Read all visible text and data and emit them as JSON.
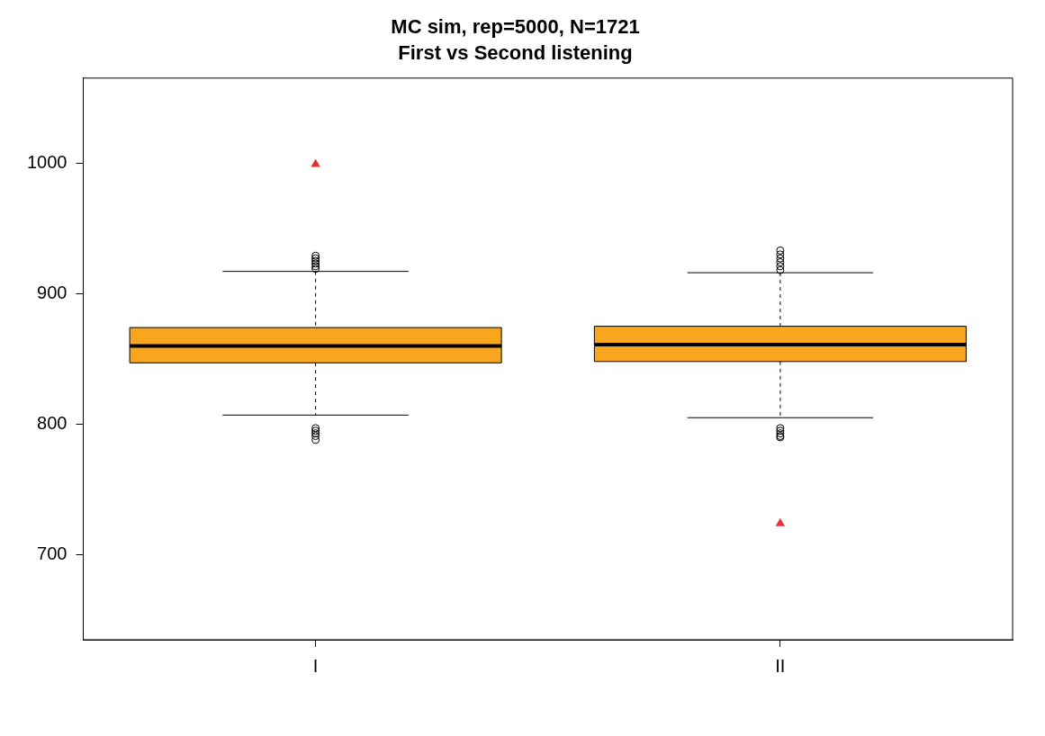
{
  "chart_data": {
    "type": "box",
    "title": "MC sim, rep=5000, N=1721",
    "subtitle": "First vs Second listening",
    "categories": [
      "I",
      "II"
    ],
    "color": "#f9a61f",
    "grid": false,
    "legend": false,
    "ylim": [
      635,
      1065
    ],
    "yticks": [
      700,
      800,
      900,
      1000
    ],
    "boxes": [
      {
        "low": 807,
        "q1": 847,
        "median": 860,
        "q3": 874,
        "high": 917,
        "outliers": [
          919,
          921,
          923,
          925,
          927,
          929,
          797,
          795,
          793,
          791,
          788
        ]
      },
      {
        "low": 805,
        "q1": 848,
        "median": 861,
        "q3": 875,
        "high": 916,
        "outliers": [
          918,
          921,
          924,
          927,
          930,
          933,
          797,
          795,
          793,
          791,
          790
        ]
      }
    ],
    "series": [
      {
        "type": "scatter",
        "x": [
          "I",
          "II"
        ],
        "values": [
          999,
          724
        ],
        "color": "#e8303a",
        "marker": "triangle"
      }
    ]
  }
}
